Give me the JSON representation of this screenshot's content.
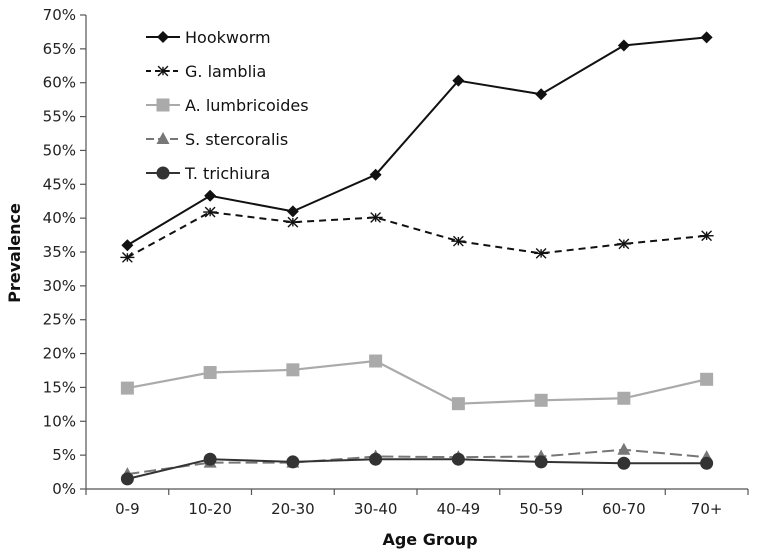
{
  "chart_data": {
    "type": "line",
    "xlabel": "Age Group",
    "ylabel": "Prevalence",
    "ylim": [
      0,
      70
    ],
    "y_tick_step": 5,
    "y_tick_suffix": "%",
    "grid": false,
    "legend_position": "top-left",
    "categories": [
      "0-9",
      "10-20",
      "20-30",
      "30-40",
      "40-49",
      "50-59",
      "60-70",
      "70+"
    ],
    "series": [
      {
        "name": "Hookworm",
        "values": [
          36,
          43.3,
          41,
          46.4,
          60.3,
          58.3,
          65.5,
          66.7
        ],
        "color": "#111111",
        "marker": "diamond",
        "dash": "solid"
      },
      {
        "name": "G. lamblia",
        "values": [
          34.2,
          40.9,
          39.4,
          40.1,
          36.6,
          34.8,
          36.2,
          37.4
        ],
        "color": "#111111",
        "marker": "asterisk",
        "dash": "dashed"
      },
      {
        "name": "A. lumbricoides",
        "values": [
          14.9,
          17.2,
          17.6,
          18.9,
          12.6,
          13.1,
          13.4,
          16.2
        ],
        "color": "#aaaaaa",
        "marker": "square",
        "dash": "solid"
      },
      {
        "name": "S. stercoralis",
        "values": [
          2.2,
          3.9,
          3.9,
          4.8,
          4.7,
          4.8,
          5.8,
          4.7
        ],
        "color": "#777777",
        "marker": "triangle",
        "dash": "longdash"
      },
      {
        "name": "T. trichiura",
        "values": [
          1.5,
          4.4,
          4.0,
          4.4,
          4.4,
          4.0,
          3.8,
          3.8
        ],
        "color": "#333333",
        "marker": "circle",
        "dash": "solid"
      }
    ]
  }
}
